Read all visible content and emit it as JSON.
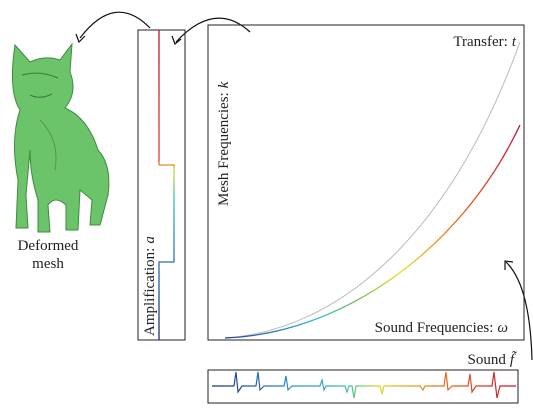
{
  "mesh_label": [
    "Deformed",
    "mesh"
  ],
  "amplification": {
    "text": "Amplification:",
    "var": "a"
  },
  "mesh_frequencies": {
    "text": "Mesh Frequencies:",
    "var": "k"
  },
  "transfer": {
    "text": "Transfer:",
    "var": "t"
  },
  "sound_frequencies": {
    "text": "Sound Frequencies:",
    "var": "ω"
  },
  "sound": {
    "text": "Sound",
    "var": "f̃"
  }
}
